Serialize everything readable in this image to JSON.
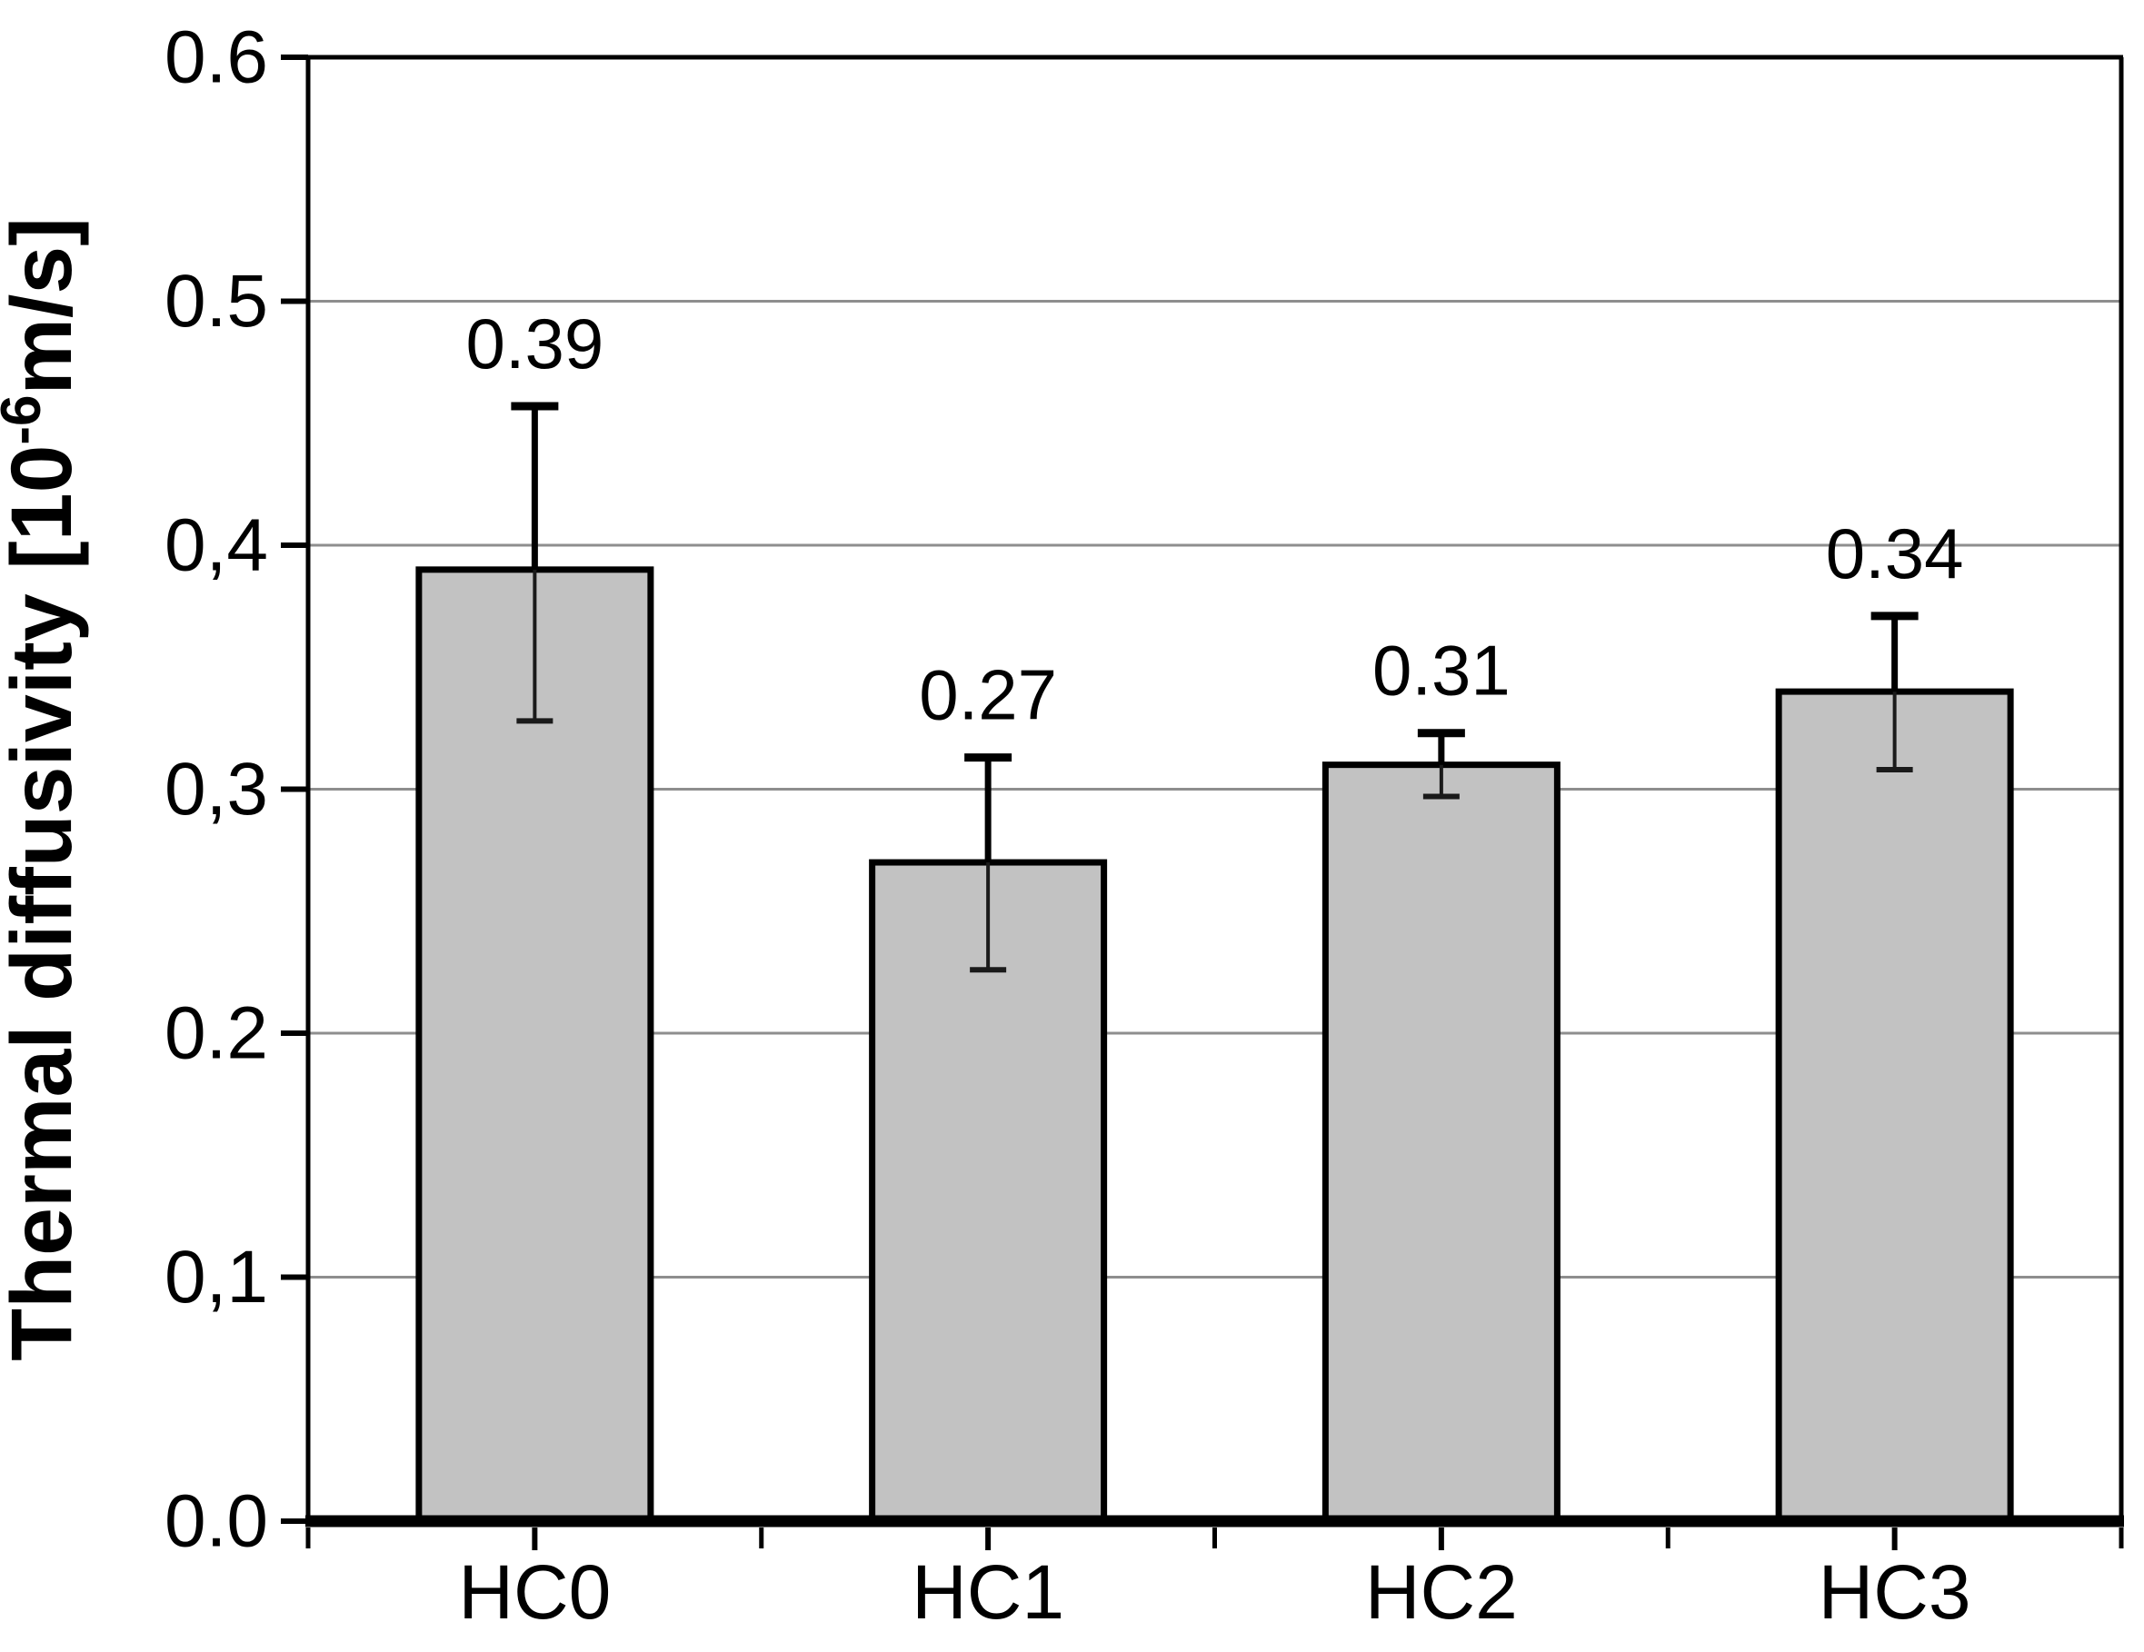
{
  "figure": {
    "background": "#ffffff"
  },
  "chart_data": {
    "type": "bar",
    "title": "",
    "categories": [
      "HC0",
      "HC1",
      "HC2",
      "HC3"
    ],
    "values": [
      0.39,
      0.27,
      0.31,
      0.34
    ],
    "value_labels": [
      "0.39",
      "0.27",
      "0.31",
      "0.34"
    ],
    "error_upper": [
      0.457,
      0.313,
      0.323,
      0.371
    ],
    "error_lower": [
      0.328,
      0.226,
      0.297,
      0.308
    ],
    "ylabel_text": "Thermal diffusivity [10-6m/s]",
    "ylabel_parts": {
      "prefix": "Thermal diffusivity [10",
      "superscript": "-6",
      "suffix": "m/s]"
    },
    "xlabel": "",
    "ylim": [
      0,
      0.6
    ],
    "ytick_values": [
      0,
      0.1,
      0.2,
      0.3,
      0.4,
      0.5,
      0.6
    ],
    "ytick_labels": [
      "0.0",
      "0,1",
      "0.2",
      "0,3",
      "0,4",
      "0.5",
      "0.6"
    ],
    "grid": "horizontal",
    "gridline_values": [
      0.1,
      0.2,
      0.3,
      0.4,
      0.5
    ],
    "legend": "none",
    "colors": {
      "bar_fill": "#c2c2c2",
      "bar_edge": "#000000",
      "grid": "#8e8e8e",
      "axis": "#000000",
      "text": "#000000"
    }
  }
}
